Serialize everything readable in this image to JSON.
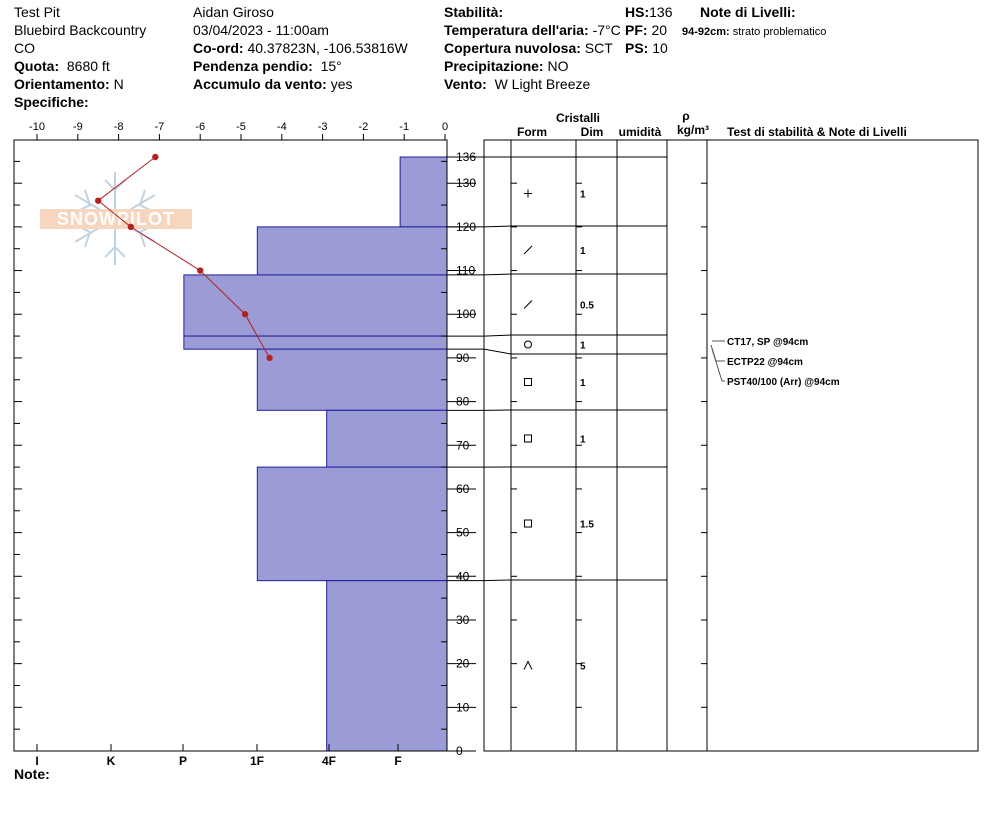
{
  "header": {
    "pit_name": "Test Pit",
    "location": "Bluebird Backcountry",
    "state": "CO",
    "elevation_label": "Quota:",
    "elevation_value": "8680 ft",
    "aspect_label": "Orientamento:",
    "aspect_value": "N",
    "specifics_label": "Specifiche:",
    "observer": "Aidan Giroso",
    "datetime": "03/04/2023 - 11:00am",
    "coords_label": "Co-ord:",
    "coords_value": "40.37823N, -106.53816W",
    "slope_label": "Pendenza pendio:",
    "slope_value": "15°",
    "wind_loading_label": "Accumulo da vento:",
    "wind_loading_value": "yes",
    "stability_label": "Stabilità:",
    "air_temp_label": "Temperatura dell'aria:",
    "air_temp_value": "-7°C",
    "cloud_label": "Copertura nuvolosa:",
    "cloud_value": "SCT",
    "precip_label": "Precipitazione:",
    "precip_value": "NO",
    "wind_label": "Vento:",
    "wind_value": "W Light Breeze",
    "hs_label": "HS:",
    "hs_value": "136",
    "pf_label": "PF:",
    "pf_value": "20",
    "ps_label": "PS:",
    "ps_value": "10",
    "layer_notes_title": "Note di Livelli:",
    "layer_note_range": "94-92cm:",
    "layer_note_text": "strato problematico"
  },
  "logo_text": "SNOWPILOT",
  "table_headers": {
    "crystals": "Cristalli",
    "form": "Form",
    "size": "Dim",
    "moisture": "umidità",
    "rho": "ρ",
    "density_unit": "kg/m³",
    "tests": "Test di stabilità & Note di Livelli"
  },
  "notes_label": "Note:",
  "stability_tests": [
    "CT17, SP @94cm",
    "ECTP22 @94cm",
    "PST40/100 (Arr) @94cm"
  ],
  "chart_data": {
    "type": "snow_profile",
    "hardness_ticks": [
      "I",
      "K",
      "P",
      "1F",
      "4F",
      "F"
    ],
    "temperature_ticks": [
      "-10",
      "-9",
      "-8",
      "-7",
      "-6",
      "-5",
      "-4",
      "-3",
      "-2",
      "-1",
      "0"
    ],
    "temperature_range": [
      -10,
      0
    ],
    "depth_ticks": [
      0,
      10,
      20,
      30,
      40,
      50,
      60,
      70,
      80,
      90,
      100,
      110,
      120,
      130,
      136
    ],
    "depth_range": [
      0,
      136
    ],
    "hardness_scale_note": "hardness expressed in temperature-axis units (0 = right edge)",
    "layers": [
      {
        "top": 136,
        "bottom": 120,
        "hardness": -1.1,
        "form": "+",
        "size": "1"
      },
      {
        "top": 120,
        "bottom": 109,
        "hardness": -4.6,
        "form": "/",
        "size": "1"
      },
      {
        "top": 109,
        "bottom": 95,
        "hardness": -6.4,
        "form": "/",
        "size": "0.5"
      },
      {
        "top": 95,
        "bottom": 92,
        "hardness": -6.4,
        "form": "o",
        "size": "1"
      },
      {
        "top": 92,
        "bottom": 78,
        "hardness": -4.6,
        "form": "□",
        "size": "1"
      },
      {
        "top": 78,
        "bottom": 65,
        "hardness": -2.9,
        "form": "□",
        "size": "1"
      },
      {
        "top": 65,
        "bottom": 39,
        "hardness": -4.6,
        "form": "□",
        "size": "1.5"
      },
      {
        "top": 39,
        "bottom": 0,
        "hardness": -2.9,
        "form": "^",
        "size": "5"
      }
    ],
    "temperature_profile": [
      {
        "depth": 136,
        "temp": -7.1
      },
      {
        "depth": 126,
        "temp": -8.5
      },
      {
        "depth": 120,
        "temp": -7.7
      },
      {
        "depth": 110,
        "temp": -6.0
      },
      {
        "depth": 100,
        "temp": -4.9
      },
      {
        "depth": 90,
        "temp": -4.3
      }
    ]
  }
}
